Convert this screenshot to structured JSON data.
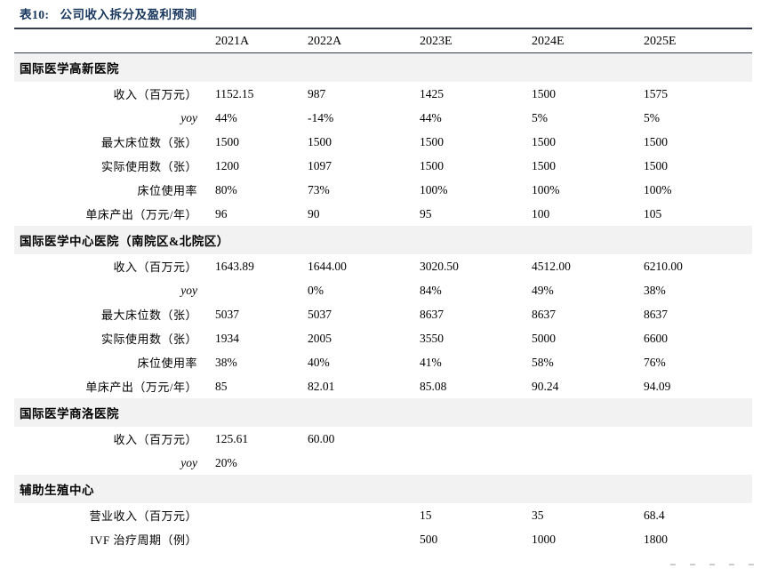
{
  "title": {
    "prefix": "表10:",
    "text": "公司收入拆分及盈利预测"
  },
  "colors": {
    "title_navy": "#17365d",
    "rule_dark": "#353b4e",
    "section_band_gray": "#f2f2f2",
    "watermark_gray": "#cccccc"
  },
  "table": {
    "columns": [
      "2021A",
      "2022A",
      "2023E",
      "2024E",
      "2025E"
    ],
    "sections": [
      {
        "header": "国际医学高新医院",
        "rows": [
          {
            "label": "收入（百万元）",
            "italic": false,
            "values": [
              "1152.15",
              "987",
              "1425",
              "1500",
              "1575"
            ]
          },
          {
            "label": "yoy",
            "italic": true,
            "values": [
              "44%",
              "-14%",
              "44%",
              "5%",
              "5%"
            ]
          },
          {
            "label": "最大床位数（张）",
            "italic": false,
            "values": [
              "1500",
              "1500",
              "1500",
              "1500",
              "1500"
            ]
          },
          {
            "label": "实际使用数（张）",
            "italic": false,
            "values": [
              "1200",
              "1097",
              "1500",
              "1500",
              "1500"
            ]
          },
          {
            "label": "床位使用率",
            "italic": false,
            "values": [
              "80%",
              "73%",
              "100%",
              "100%",
              "100%"
            ]
          },
          {
            "label": "单床产出（万元/年）",
            "italic": false,
            "values": [
              "96",
              "90",
              "95",
              "100",
              "105"
            ]
          }
        ]
      },
      {
        "header": "国际医学中心医院（南院区&北院区）",
        "rows": [
          {
            "label": "收入（百万元）",
            "italic": false,
            "values": [
              "1643.89",
              "1644.00",
              "3020.50",
              "4512.00",
              "6210.00"
            ]
          },
          {
            "label": "yoy",
            "italic": true,
            "values": [
              "",
              "0%",
              "84%",
              "49%",
              "38%"
            ]
          },
          {
            "label": "最大床位数（张）",
            "italic": false,
            "values": [
              "5037",
              "5037",
              "8637",
              "8637",
              "8637"
            ]
          },
          {
            "label": "实际使用数（张）",
            "italic": false,
            "values": [
              "1934",
              "2005",
              "3550",
              "5000",
              "6600"
            ]
          },
          {
            "label": "床位使用率",
            "italic": false,
            "values": [
              "38%",
              "40%",
              "41%",
              "58%",
              "76%"
            ]
          },
          {
            "label": "单床产出（万元/年）",
            "italic": false,
            "values": [
              "85",
              "82.01",
              "85.08",
              "90.24",
              "94.09"
            ]
          }
        ]
      },
      {
        "header": "国际医学商洛医院",
        "rows": [
          {
            "label": "收入（百万元）",
            "italic": false,
            "values": [
              "125.61",
              "60.00",
              "",
              "",
              ""
            ]
          },
          {
            "label": "yoy",
            "italic": true,
            "values": [
              "20%",
              "",
              "",
              "",
              ""
            ]
          }
        ]
      },
      {
        "header": "辅助生殖中心",
        "rows": [
          {
            "label": "营业收入（百万元）",
            "italic": false,
            "values": [
              "",
              "",
              "15",
              "35",
              "68.4"
            ]
          },
          {
            "label": "IVF 治疗周期（例）",
            "italic": false,
            "values": [
              "",
              "",
              "500",
              "1000",
              "1800"
            ]
          }
        ]
      }
    ]
  }
}
